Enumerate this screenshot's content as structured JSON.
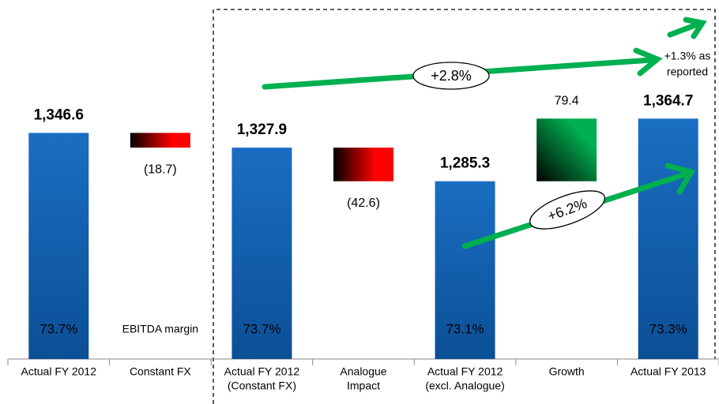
{
  "chart_data": {
    "type": "waterfall",
    "categories": [
      [
        "Actual FY 2012"
      ],
      [
        "Constant FX"
      ],
      [
        "Actual FY 2012",
        "(Constant FX)"
      ],
      [
        "Analogue",
        "Impact"
      ],
      [
        "Actual FY 2012",
        "(excl. Analogue)"
      ],
      [
        "Growth"
      ],
      [
        "Actual FY 2013"
      ]
    ],
    "measure": [
      "absolute",
      "relative",
      "absolute",
      "relative",
      "absolute",
      "relative",
      "absolute"
    ],
    "values": [
      1346.6,
      -18.7,
      1327.9,
      -42.6,
      1285.3,
      79.4,
      1364.7
    ],
    "value_labels": [
      "1,346.6",
      "(18.7)",
      "1,327.9",
      "(42.6)",
      "1,285.3",
      "79.4",
      "1,364.7"
    ],
    "margin_labels": [
      "73.7%",
      "EBITDA margin",
      "73.7%",
      null,
      "73.1%",
      null,
      "73.3%"
    ],
    "colors": {
      "total": "#0a64b4",
      "decrease": "#ff0000",
      "increase": "#00b050"
    },
    "ylim": [
      1060,
      1495
    ],
    "annotations": {
      "overall": "+2.8%",
      "organic": "+6.2%",
      "reported": [
        "+1.3% as",
        "reported"
      ]
    }
  }
}
